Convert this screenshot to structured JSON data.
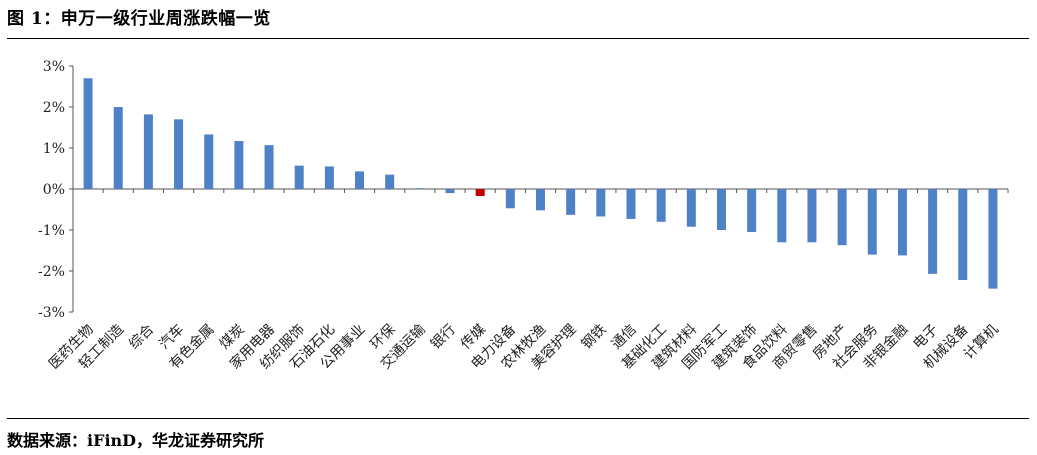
{
  "figure": {
    "title": "图 1：申万一级行业周涨跌幅一览",
    "source": "数据来源：iFinD，华龙证券研究所"
  },
  "chart_data": {
    "type": "bar",
    "title": "",
    "xlabel": "",
    "ylabel": "",
    "ylim": [
      -3,
      3
    ],
    "yticks": [
      "3%",
      "2%",
      "1%",
      "0%",
      "-1%",
      "-2%",
      "-3%"
    ],
    "ytick_values": [
      3,
      2,
      1,
      0,
      -1,
      -2,
      -3
    ],
    "grid": false,
    "legend": "none",
    "bar_color": "#4f81c7",
    "highlight_color": "#c00000",
    "highlight_category": "传媒",
    "categories": [
      "医药生物",
      "轻工制造",
      "综合",
      "汽车",
      "有色金属",
      "煤炭",
      "家用电器",
      "纺织服饰",
      "石油石化",
      "公用事业",
      "环保",
      "交通运输",
      "银行",
      "传媒",
      "电力设备",
      "农林牧渔",
      "美容护理",
      "钢铁",
      "通信",
      "基础化工",
      "建筑材料",
      "国防军工",
      "建筑装饰",
      "食品饮料",
      "商贸零售",
      "房地产",
      "社会服务",
      "非银金融",
      "电子",
      "机械设备",
      "计算机"
    ],
    "values": [
      2.7,
      2.0,
      1.82,
      1.7,
      1.33,
      1.17,
      1.07,
      0.57,
      0.55,
      0.43,
      0.35,
      0.02,
      -0.1,
      -0.17,
      -0.47,
      -0.52,
      -0.63,
      -0.67,
      -0.73,
      -0.8,
      -0.92,
      -1.0,
      -1.05,
      -1.3,
      -1.3,
      -1.37,
      -1.6,
      -1.62,
      -2.07,
      -2.22,
      -2.43
    ]
  }
}
